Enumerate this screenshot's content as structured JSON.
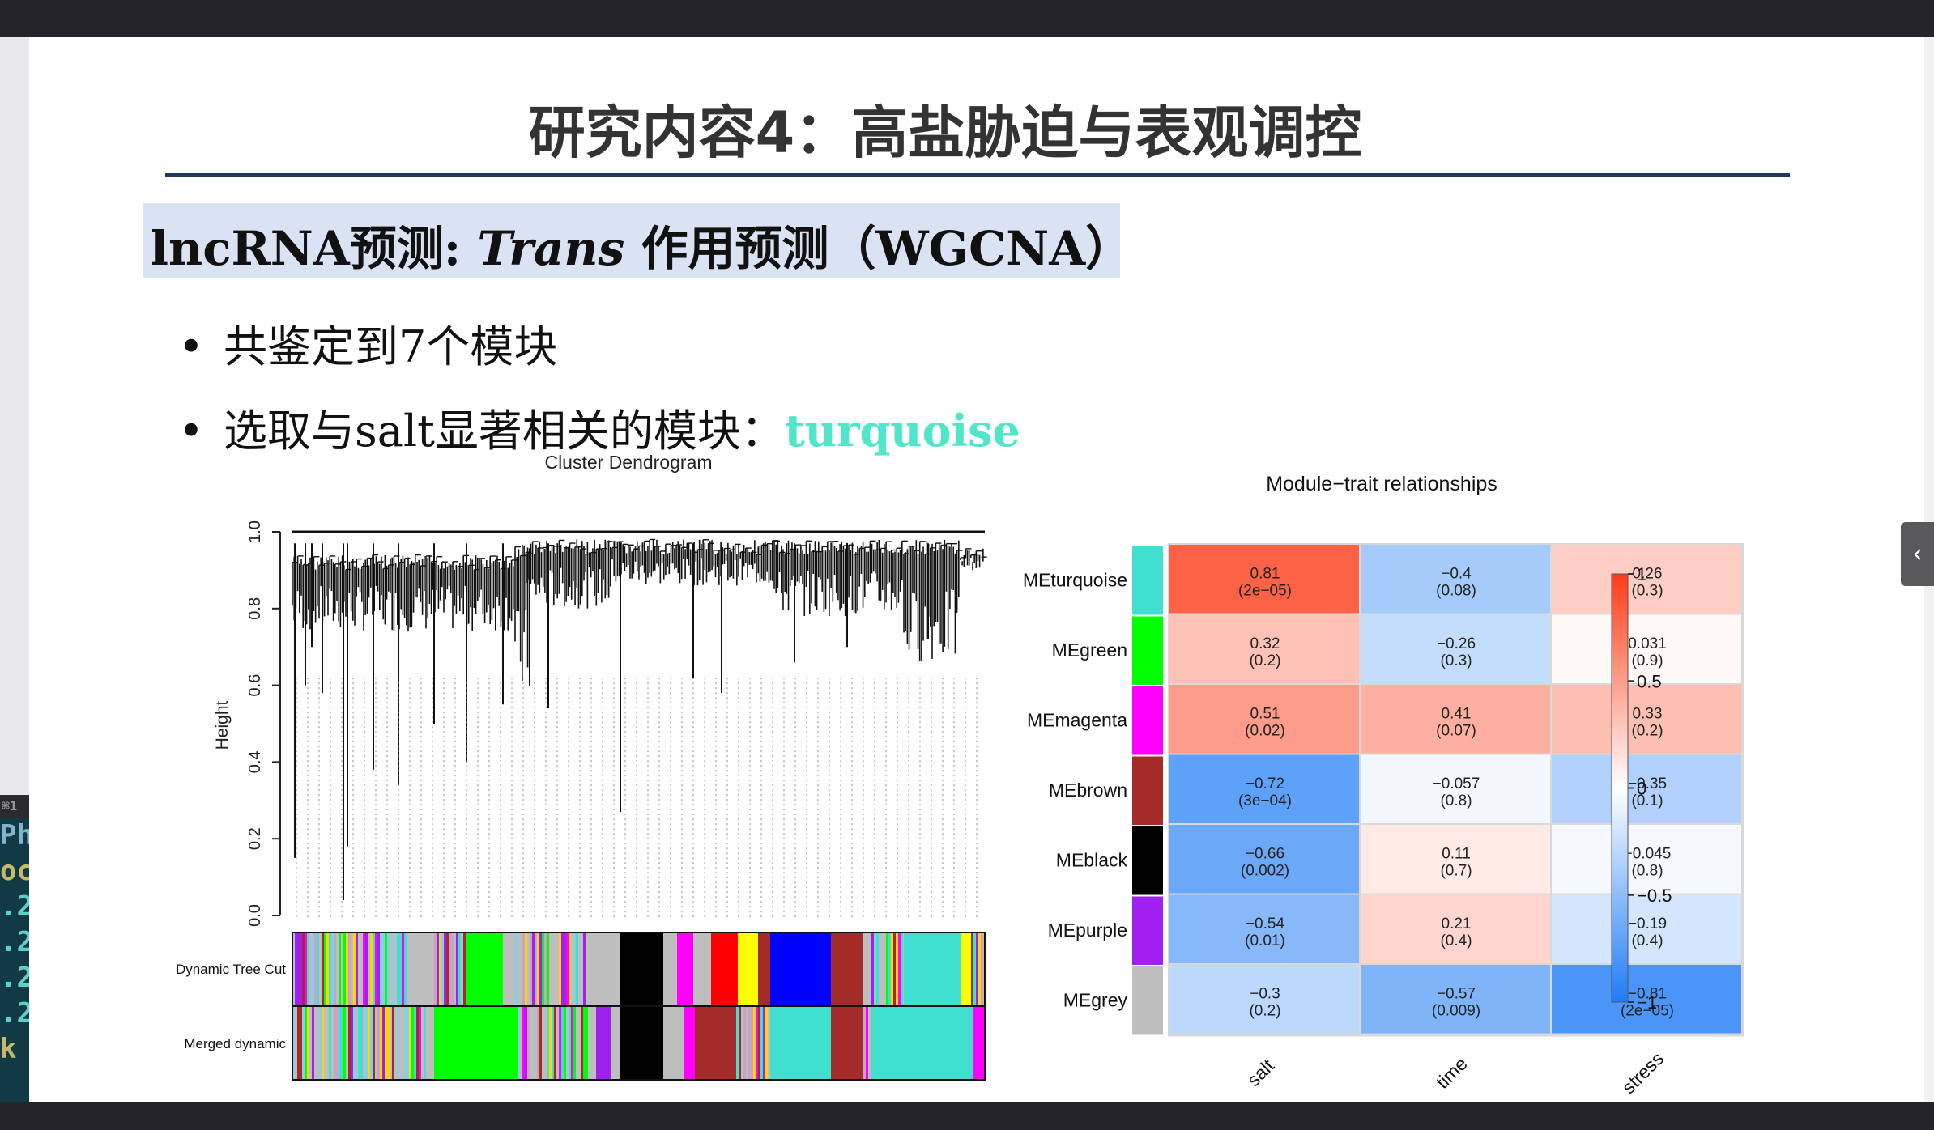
{
  "slide": {
    "title": "研究内容4：高盐胁迫与表观调控",
    "subheading": {
      "prefix": "lncRNA预测: ",
      "italic": "Trans",
      "suffix": " 作用预测（WGCNA）"
    },
    "bullets": [
      {
        "text": "共鉴定到7个模块",
        "highlight": ""
      },
      {
        "text": "选取与salt显著相关的模块：",
        "highlight": "turquoise"
      }
    ],
    "highlight_color": "#4fe6c9",
    "title_rule_color": "#1f3864",
    "subheading_bg": "#dae3f3"
  },
  "window": {
    "side_handle_icon": "chevron-left-icon",
    "side_handle_glyph": "‹",
    "terminal_tab": "⌘1",
    "terminal_lines": [
      "Ph",
      "oc",
      ".2",
      ".2",
      ".2",
      ".2",
      "k"
    ]
  },
  "dendrogram": {
    "title": "Cluster Dendrogram",
    "ylabel": "Height",
    "y_ticks": [
      "0.0",
      "0.2",
      "0.4",
      "0.6",
      "0.8",
      "1.0"
    ],
    "ylim": [
      0,
      1
    ],
    "color_rows": [
      "Dynamic Tree Cut",
      "Merged dynamic"
    ]
  },
  "chart_data": {
    "type": "heatmap",
    "title": "Module−trait relationships",
    "rows": [
      "MEturquoise",
      "MEgreen",
      "MEmagenta",
      "MEbrown",
      "MEblack",
      "MEpurple",
      "MEgrey"
    ],
    "row_colors": [
      "#40e0d0",
      "#00ff00",
      "#ff00ff",
      "#a52a2a",
      "#000000",
      "#a020f0",
      "#bebebe"
    ],
    "columns": [
      "salt",
      "time",
      "stress"
    ],
    "values": [
      [
        0.81,
        -0.4,
        0.26
      ],
      [
        0.32,
        -0.26,
        0.031
      ],
      [
        0.51,
        0.41,
        0.33
      ],
      [
        -0.72,
        -0.057,
        -0.35
      ],
      [
        -0.66,
        0.11,
        -0.045
      ],
      [
        -0.54,
        0.21,
        -0.19
      ],
      [
        -0.3,
        -0.57,
        -0.81
      ]
    ],
    "cell_labels": [
      [
        [
          "0.81",
          "(2e−05)"
        ],
        [
          "−0.4",
          "(0.08)"
        ],
        [
          "0.26",
          "(0.3)"
        ]
      ],
      [
        [
          "0.32",
          "(0.2)"
        ],
        [
          "−0.26",
          "(0.3)"
        ],
        [
          "0.031",
          "(0.9)"
        ]
      ],
      [
        [
          "0.51",
          "(0.02)"
        ],
        [
          "0.41",
          "(0.07)"
        ],
        [
          "0.33",
          "(0.2)"
        ]
      ],
      [
        [
          "−0.72",
          "(3e−04)"
        ],
        [
          "−0.057",
          "(0.8)"
        ],
        [
          "−0.35",
          "(0.1)"
        ]
      ],
      [
        [
          "−0.66",
          "(0.002)"
        ],
        [
          "0.11",
          "(0.7)"
        ],
        [
          "−0.045",
          "(0.8)"
        ]
      ],
      [
        [
          "−0.54",
          "(0.01)"
        ],
        [
          "0.21",
          "(0.4)"
        ],
        [
          "−0.19",
          "(0.4)"
        ]
      ],
      [
        [
          "−0.3",
          "(0.2)"
        ],
        [
          "−0.57",
          "(0.009)"
        ],
        [
          "−0.81",
          "(2e−05)"
        ]
      ]
    ],
    "colorbar_ticks": [
      {
        "value": 1,
        "label": "1"
      },
      {
        "value": 0.5,
        "label": "0.5"
      },
      {
        "value": 0,
        "label": "0"
      },
      {
        "value": -0.5,
        "label": "−0.5"
      },
      {
        "value": -1,
        "label": "−1"
      }
    ],
    "vlim": [
      -1,
      1
    ],
    "color_low": "#1f7cf5",
    "color_mid": "#ffffff",
    "color_high": "#fb3d19"
  }
}
